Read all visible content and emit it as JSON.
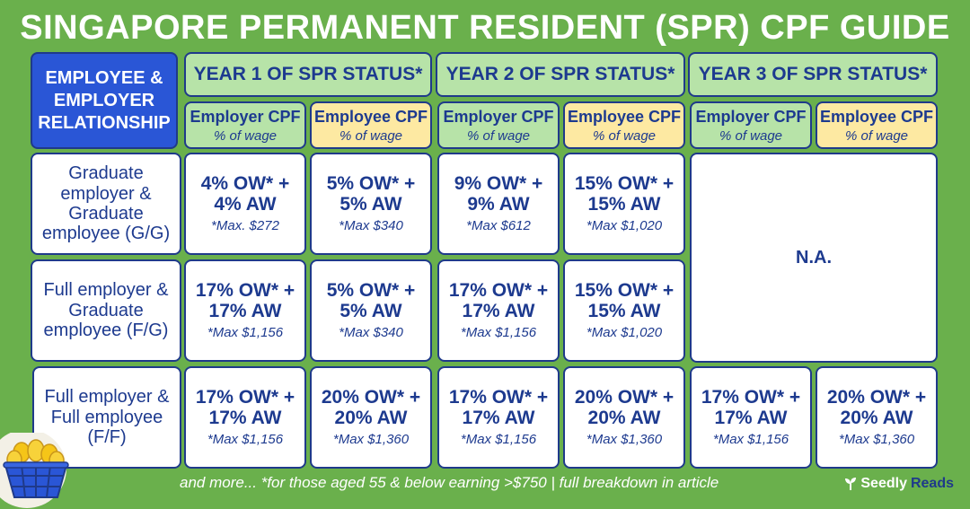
{
  "title": "SINGAPORE PERMANENT RESIDENT (SPR) CPF GUIDE",
  "corner_label": "EMPLOYEE & EMPLOYER RELATIONSHIP",
  "years": [
    {
      "label": "YEAR 1 OF SPR STATUS*"
    },
    {
      "label": "YEAR 2 OF SPR STATUS*"
    },
    {
      "label": "YEAR 3 OF SPR STATUS*"
    }
  ],
  "sub_headers": {
    "employer": "Employer CPF",
    "employee": "Employee CPF",
    "unit": "% of wage"
  },
  "rows": [
    {
      "label": "Graduate employer & Graduate employee (G/G)",
      "cells": [
        {
          "rate": "4% OW* + 4% AW",
          "max": "*Max. $272"
        },
        {
          "rate": "5% OW* + 5% AW",
          "max": "*Max $340"
        },
        {
          "rate": "9% OW* + 9% AW",
          "max": "*Max $612"
        },
        {
          "rate": "15% OW* + 15% AW",
          "max": "*Max $1,020"
        }
      ]
    },
    {
      "label": "Full employer & Graduate employee (F/G)",
      "cells": [
        {
          "rate": "17% OW* + 17% AW",
          "max": "*Max $1,156"
        },
        {
          "rate": "5% OW* + 5% AW",
          "max": "*Max $340"
        },
        {
          "rate": "17% OW* + 17% AW",
          "max": "*Max $1,156"
        },
        {
          "rate": "15% OW* + 15% AW",
          "max": "*Max $1,020"
        }
      ]
    },
    {
      "label": "Full employer & Full employee (F/F)",
      "cells": [
        {
          "rate": "17% OW* + 17% AW",
          "max": "*Max $1,156"
        },
        {
          "rate": "20% OW* + 20% AW",
          "max": "*Max $1,360"
        },
        {
          "rate": "17% OW* + 17% AW",
          "max": "*Max $1,156"
        },
        {
          "rate": "20% OW* + 20% AW",
          "max": "*Max $1,360"
        },
        {
          "rate": "17% OW* + 17% AW",
          "max": "*Max $1,156"
        },
        {
          "rate": "20% OW* + 20% AW",
          "max": "*Max $1,360"
        }
      ]
    }
  ],
  "na_label": "N.A.",
  "footer": "and more... *for those aged 55 & below earning >$750 | full breakdown in article",
  "brand": {
    "part1": "Seedly",
    "part2": "Reads"
  },
  "colors": {
    "background": "#6ab04c",
    "navy": "#1d3a8f",
    "corner": "#2a56d6",
    "green_cell": "#b7e3a8",
    "yellow_cell": "#fde9a2"
  }
}
